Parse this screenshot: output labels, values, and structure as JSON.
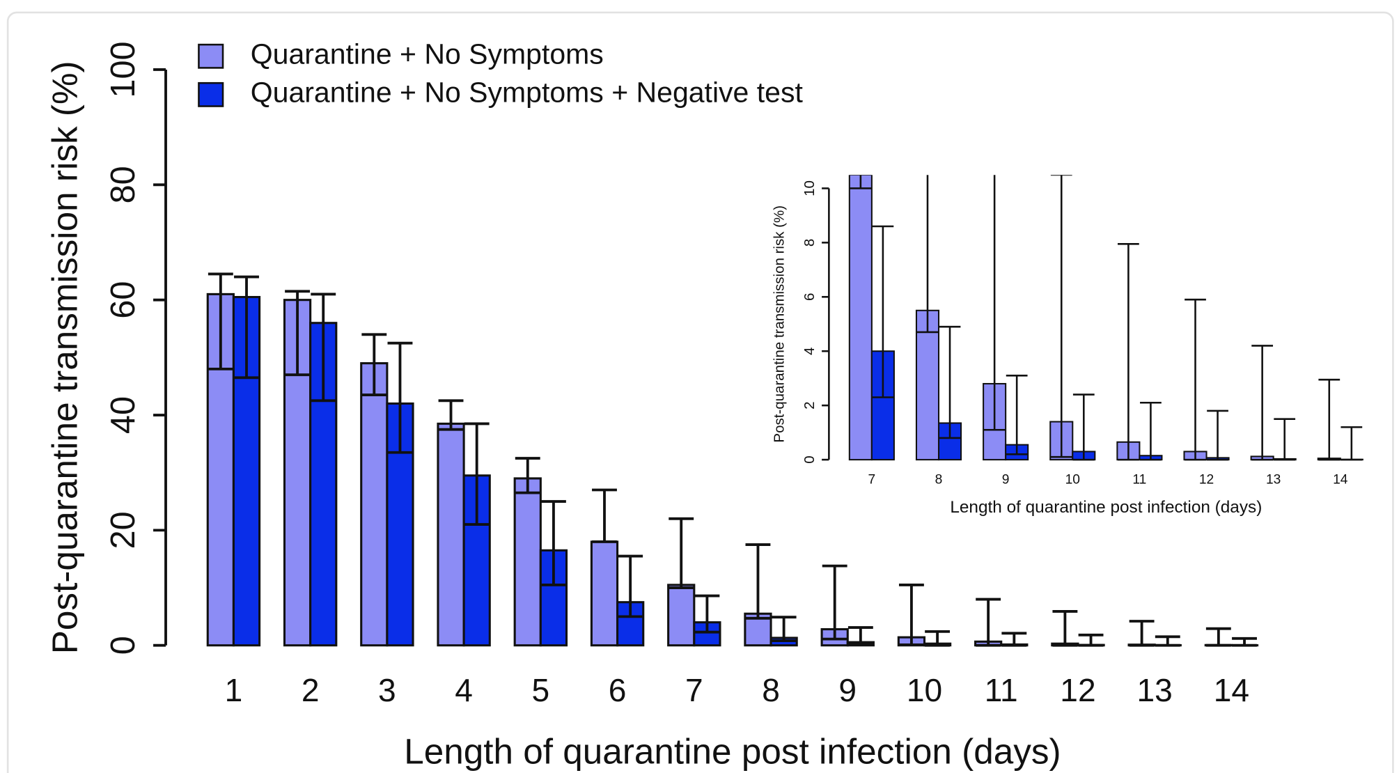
{
  "chart_data": [
    {
      "type": "bar",
      "xlabel": "Length of quarantine post infection (days)",
      "ylabel": "Post-quarantine transmission risk (%)",
      "categories": [
        "1",
        "2",
        "3",
        "4",
        "5",
        "6",
        "7",
        "8",
        "9",
        "10",
        "11",
        "12",
        "13",
        "14"
      ],
      "series": [
        {
          "name": "Quarantine + No Symptoms",
          "color": "#8c8cf5",
          "values": [
            61,
            60,
            49,
            38.5,
            29,
            18,
            10.5,
            5.5,
            2.8,
            1.4,
            0.65,
            0.3,
            0.12,
            0.05
          ],
          "error_low": [
            48,
            47,
            43.5,
            37.5,
            26.5,
            18,
            10,
            4.7,
            1.1,
            0.1,
            0,
            0,
            0,
            0
          ],
          "error_high": [
            64.5,
            61.5,
            54,
            42.5,
            32.5,
            27,
            22,
            17.5,
            13.8,
            10.5,
            8,
            5.9,
            4.2,
            2.9
          ]
        },
        {
          "name": "Quarantine + No Symptoms + Negative test",
          "color": "#0a2ee8",
          "values": [
            60.5,
            56,
            42,
            29.5,
            16.5,
            7.5,
            4,
            1.3,
            0.55,
            0.3,
            0.15,
            0.07,
            0.03,
            0.01
          ],
          "error_low": [
            46.5,
            42.5,
            33.5,
            21,
            10.5,
            5,
            2.3,
            0.8,
            0.2,
            0,
            0,
            0,
            0,
            0
          ],
          "error_high": [
            64,
            61,
            52.5,
            38.5,
            25,
            15.5,
            8.6,
            4.9,
            3.1,
            2.4,
            2.1,
            1.8,
            1.5,
            1.2
          ]
        }
      ],
      "ylim": [
        0,
        100
      ],
      "yticks": [
        0,
        20,
        40,
        60,
        80,
        100
      ],
      "legend": "top-left"
    },
    {
      "type": "bar",
      "xlabel": "Length of quarantine post infection (days)",
      "ylabel": "Post-quarantine transmission risk (%)",
      "categories": [
        "7",
        "8",
        "9",
        "10",
        "11",
        "12",
        "13",
        "14"
      ],
      "series": [
        {
          "color": "#8c8cf5",
          "values": [
            10.5,
            5.5,
            2.8,
            1.4,
            0.65,
            0.3,
            0.12,
            0.05
          ],
          "error_low": [
            10,
            4.7,
            1.1,
            0.1,
            0,
            0,
            0,
            0
          ],
          "error_high": [
            22,
            17.5,
            13.8,
            10.5,
            7.95,
            5.9,
            4.2,
            2.95
          ]
        },
        {
          "color": "#0a2ee8",
          "values": [
            4,
            1.35,
            0.55,
            0.3,
            0.15,
            0.07,
            0.03,
            0.01
          ],
          "error_low": [
            2.3,
            0.8,
            0.2,
            0,
            0,
            0,
            0,
            0
          ],
          "error_high": [
            8.6,
            4.9,
            3.1,
            2.4,
            2.1,
            1.8,
            1.5,
            1.2
          ]
        }
      ],
      "ylim": [
        0,
        10
      ],
      "yticks": [
        0,
        2,
        4,
        6,
        8,
        10
      ]
    }
  ]
}
